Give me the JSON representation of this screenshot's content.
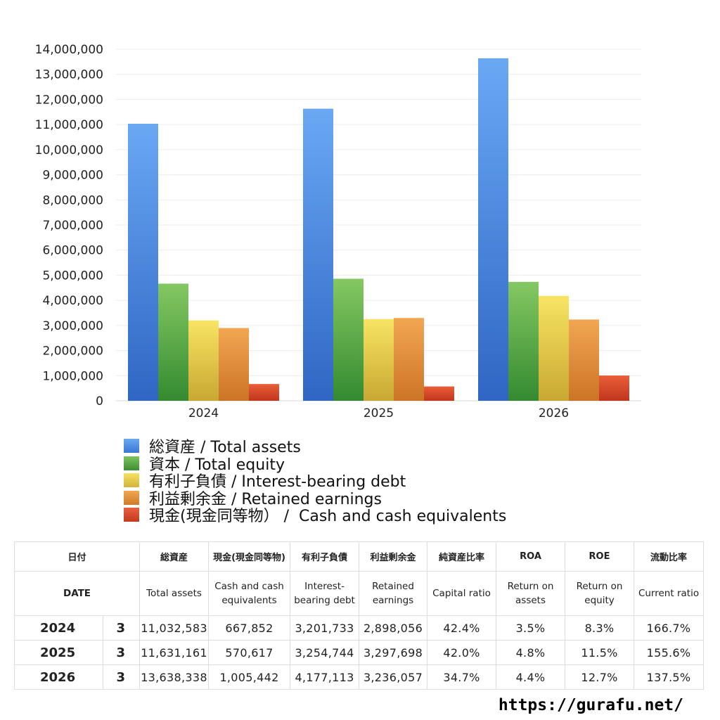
{
  "chart_data": {
    "type": "bar",
    "categories": [
      "2024",
      "2025",
      "2026"
    ],
    "series": [
      {
        "name": "総資産 / Total assets",
        "values": [
          11032583,
          11631161,
          13638338
        ],
        "color": "#4a8ee6"
      },
      {
        "name": "資本 / Total equity",
        "values": [
          4665000,
          4860000,
          4735000
        ],
        "color": "#5bb04a"
      },
      {
        "name": "有利子負債 / Interest-bearing debt",
        "values": [
          3201733,
          3254744,
          4177113
        ],
        "color": "#ead04a"
      },
      {
        "name": "利益剰余金 / Retained earnings",
        "values": [
          2898056,
          3297698,
          3236057
        ],
        "color": "#e6923a"
      },
      {
        "name": "現金(現金同等物） /  Cash and cash equivalents",
        "values": [
          667852,
          570617,
          1005442
        ],
        "color": "#d84a2c"
      }
    ],
    "yticks": [
      "0",
      "1,000,000",
      "2,000,000",
      "3,000,000",
      "4,000,000",
      "5,000,000",
      "6,000,000",
      "7,000,000",
      "8,000,000",
      "9,000,000",
      "10,000,000",
      "11,000,000",
      "12,000,000",
      "13,000,000",
      "14,000,000"
    ],
    "ylim": [
      0,
      14000000
    ],
    "grid": true,
    "legend_position": "bottom"
  },
  "table": {
    "header_jp": {
      "date": "日付",
      "total_assets": "総資産",
      "cash": "現金(現金同等物)",
      "debt": "有利子負債",
      "retained": "利益剰余金",
      "capital_ratio": "純資産比率",
      "roa": "ROA",
      "roe": "ROE",
      "current_ratio": "流動比率"
    },
    "header_en": {
      "date": "DATE",
      "total_assets": "Total assets",
      "cash": "Cash and cash equivalents",
      "debt": "Interest-bearing debt",
      "retained": "Retained earnings",
      "capital_ratio": "Capital ratio",
      "roa": "Return on assets",
      "roe": "Return on equity",
      "current_ratio": "Current ratio"
    },
    "rows": [
      {
        "year": "2024",
        "month": "3",
        "total_assets": "11,032,583",
        "cash": "667,852",
        "debt": "3,201,733",
        "retained": "2,898,056",
        "capital_ratio": "42.4%",
        "roa": "3.5%",
        "roe": "8.3%",
        "current_ratio": "166.7%"
      },
      {
        "year": "2025",
        "month": "3",
        "total_assets": "11,631,161",
        "cash": "570,617",
        "debt": "3,254,744",
        "retained": "3,297,698",
        "capital_ratio": "42.0%",
        "roa": "4.8%",
        "roe": "11.5%",
        "current_ratio": "155.6%"
      },
      {
        "year": "2026",
        "month": "3",
        "total_assets": "13,638,338",
        "cash": "1,005,442",
        "debt": "4,177,113",
        "retained": "3,236,057",
        "capital_ratio": "34.7%",
        "roa": "4.4%",
        "roe": "12.7%",
        "current_ratio": "137.5%"
      }
    ]
  },
  "footer": {
    "url": "https://gurafu.net/"
  }
}
